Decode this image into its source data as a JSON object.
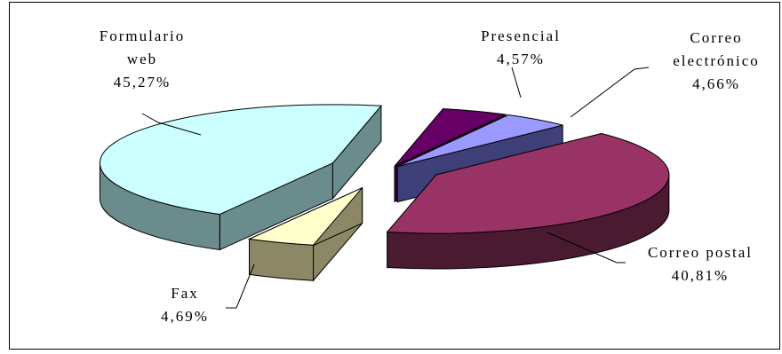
{
  "chart_data": {
    "type": "pie",
    "slices": [
      {
        "label_lines": [
          "Presencial"
        ],
        "value_text": "4,57%",
        "value": 4.57,
        "top_color": "#660066",
        "side_color": "#3d003d"
      },
      {
        "label_lines": [
          "Correo",
          "electrónico"
        ],
        "value_text": "4,66%",
        "value": 4.66,
        "top_color": "#9999ff",
        "side_color": "#3f3f7a"
      },
      {
        "label_lines": [
          "Correo postal"
        ],
        "value_text": "40,81%",
        "value": 40.81,
        "top_color": "#993366",
        "side_color": "#4a1a30"
      },
      {
        "label_lines": [
          "Fax"
        ],
        "value_text": "4,69%",
        "value": 4.69,
        "top_color": "#ffffcc",
        "side_color": "#8c8866"
      },
      {
        "label_lines": [
          "Formulario",
          "web"
        ],
        "value_text": "45,27%",
        "value": 45.27,
        "top_color": "#ccffff",
        "side_color": "#6b8c8c"
      }
    ],
    "style": "3d-exploded",
    "legend": "none"
  }
}
